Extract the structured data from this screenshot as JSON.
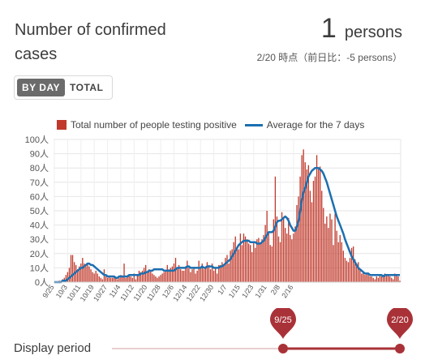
{
  "header": {
    "title_line1": "Number of confirmed",
    "title_line2": "cases",
    "count": "1",
    "count_unit": "persons",
    "note": "2/20 時点（前日比：-5 persons）"
  },
  "toggle": {
    "by_day": "BY DAY",
    "total": "TOTAL",
    "selected": "BY DAY"
  },
  "legend": {
    "bar_label": "Total number of people testing positive",
    "line_label": "Average for the 7 days"
  },
  "colors": {
    "bar": "#c0392b",
    "line": "#1c6fb0",
    "slider": "#a93238",
    "track": "#e8cfd1"
  },
  "chart_data": {
    "type": "bar",
    "ylim": [
      0,
      100
    ],
    "y_ticks": [
      "0人",
      "10人",
      "20人",
      "30人",
      "40人",
      "50人",
      "60人",
      "70人",
      "80人",
      "90人",
      "100人"
    ],
    "x_ticks": [
      "9/25",
      "10/3",
      "10/11",
      "10/19",
      "10/27",
      "11/4",
      "11/12",
      "11/20",
      "11/28",
      "12/6",
      "12/14",
      "12/22",
      "12/30",
      "1/7",
      "1/15",
      "1/23",
      "1/31",
      "2/8",
      "2/16"
    ],
    "start_label": "9/25",
    "end_label": "2/20",
    "series": [
      {
        "name": "Total number of people testing positive",
        "type": "bar",
        "values": [
          0,
          0,
          0,
          1,
          1,
          2,
          3,
          5,
          7,
          10,
          19,
          19,
          14,
          12,
          9,
          11,
          13,
          17,
          13,
          11,
          13,
          11,
          9,
          7,
          6,
          8,
          6,
          4,
          3,
          2,
          9,
          4,
          3,
          4,
          3,
          3,
          4,
          3,
          2,
          3,
          5,
          4,
          13,
          3,
          4,
          5,
          4,
          3,
          6,
          2,
          5,
          8,
          7,
          8,
          10,
          12,
          7,
          9,
          8,
          6,
          5,
          4,
          3,
          4,
          5,
          6,
          7,
          8,
          12,
          9,
          10,
          11,
          13,
          17,
          10,
          12,
          9,
          8,
          8,
          11,
          15,
          10,
          7,
          9,
          10,
          6,
          8,
          15,
          10,
          13,
          9,
          11,
          14,
          12,
          9,
          13,
          8,
          10,
          6,
          12,
          12,
          14,
          12,
          17,
          19,
          13,
          22,
          23,
          28,
          32,
          24,
          23,
          34,
          26,
          34,
          32,
          30,
          27,
          26,
          21,
          28,
          24,
          30,
          31,
          28,
          30,
          33,
          40,
          50,
          34,
          26,
          25,
          44,
          74,
          46,
          32,
          28,
          49,
          45,
          38,
          34,
          45,
          33,
          30,
          34,
          39,
          54,
          60,
          74,
          89,
          93,
          84,
          79,
          82,
          64,
          56,
          71,
          74,
          89,
          79,
          81,
          64,
          52,
          41,
          46,
          38,
          48,
          44,
          26,
          48,
          36,
          28,
          33,
          28,
          22,
          17,
          15,
          14,
          17,
          24,
          25,
          16,
          12,
          14,
          9,
          6,
          7,
          5,
          6,
          6,
          4,
          4,
          3,
          2,
          4,
          3,
          5,
          4,
          4,
          6,
          5,
          5,
          4,
          3,
          2,
          6,
          5,
          4,
          1
        ]
      },
      {
        "name": "Average for the 7 days",
        "type": "line",
        "values": [
          0,
          0,
          0,
          0,
          0,
          1,
          1,
          1,
          2,
          3,
          4,
          5,
          6,
          7,
          8,
          9,
          10,
          10,
          11,
          12,
          13,
          13,
          12,
          12,
          11,
          10,
          9,
          8,
          7,
          6,
          5,
          5,
          4,
          4,
          4,
          4,
          4,
          3,
          3,
          4,
          4,
          4,
          4,
          4,
          4,
          5,
          5,
          5,
          5,
          5,
          5,
          5,
          6,
          6,
          6,
          7,
          7,
          8,
          8,
          8,
          9,
          9,
          9,
          9,
          9,
          9,
          8,
          8,
          8,
          8,
          8,
          8,
          8,
          9,
          10,
          10,
          10,
          10,
          10,
          10,
          11,
          11,
          10,
          10,
          10,
          10,
          10,
          10,
          10,
          11,
          10,
          10,
          11,
          11,
          11,
          11,
          10,
          10,
          10,
          10,
          11,
          11,
          12,
          13,
          14,
          15,
          16,
          18,
          20,
          22,
          24,
          26,
          27,
          28,
          29,
          29,
          29,
          29,
          28,
          28,
          28,
          28,
          27,
          27,
          27,
          28,
          29,
          31,
          33,
          35,
          35,
          35,
          36,
          39,
          42,
          43,
          43,
          44,
          45,
          46,
          45,
          43,
          40,
          38,
          36,
          36,
          39,
          43,
          50,
          58,
          63,
          66,
          70,
          74,
          76,
          78,
          79,
          80,
          80,
          80,
          79,
          78,
          76,
          73,
          70,
          66,
          62,
          58,
          54,
          50,
          46,
          43,
          40,
          37,
          34,
          30,
          27,
          24,
          21,
          18,
          16,
          14,
          12,
          10,
          9,
          8,
          7,
          6,
          6,
          6,
          5,
          5,
          5,
          5,
          5,
          5,
          5,
          5,
          4,
          5,
          5,
          5,
          5,
          5,
          5,
          5,
          5,
          5,
          5
        ]
      }
    ]
  }
}
